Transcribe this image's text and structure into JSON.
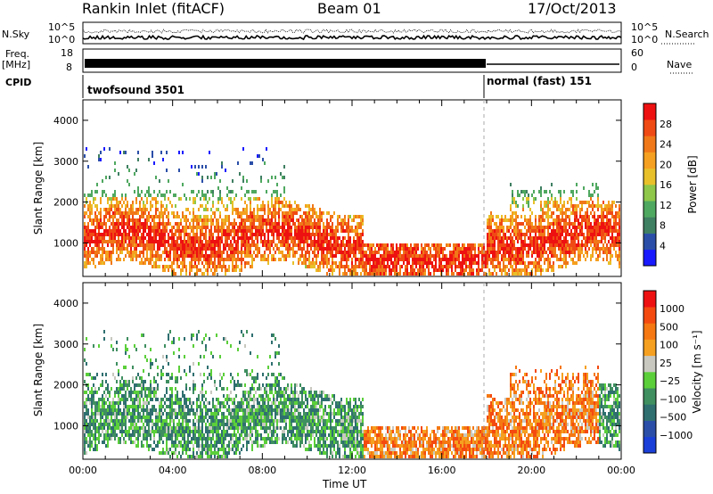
{
  "header": {
    "station": "Rankin Inlet (fitACF)",
    "beam": "Beam 01",
    "date": "17/Oct/2013"
  },
  "strip_labels": {
    "nsky": "N.Sky",
    "nsearch": "N.Search",
    "freq": "Freq.",
    "mhz": "[MHz]",
    "cpid": "CPID",
    "nave": "Nave",
    "noise_top": "10^5",
    "noise_bottom": "10^0",
    "freq_top": "18",
    "freq_bottom": "8",
    "nave_top": "60",
    "nave_bottom": "0"
  },
  "cpid_segments": [
    {
      "label": "twofsound 3501",
      "start_hour": 0,
      "end_hour": 18
    },
    {
      "label": "normal (fast) 151",
      "start_hour": 18,
      "end_hour": 24
    }
  ],
  "colors": {
    "power": [
      "#1a1aff",
      "#2b4fa8",
      "#3f7f62",
      "#4fa860",
      "#8ec74a",
      "#e8c02a",
      "#f5a020",
      "#f07818",
      "#f04a14",
      "#ee1111"
    ],
    "velocity": [
      "#ee1111",
      "#f44a10",
      "#f57812",
      "#f5a020",
      "#c8c8c0",
      "#5bcf3a",
      "#3f8f60",
      "#2f6f70",
      "#2b4fa8",
      "#1a3fd8"
    ]
  },
  "chart_data": [
    {
      "type": "heatmap",
      "panel": "power",
      "ylabel": "Slant Range [km]",
      "xlabel": "",
      "x_range_hours": [
        0,
        24
      ],
      "ylim": [
        180,
        4500
      ],
      "yticks": [
        "1000",
        "2000",
        "3000",
        "4000"
      ],
      "colorbar_label": "Power [dB]",
      "colorbar_ticks": [
        "4",
        "8",
        "12",
        "16",
        "20",
        "24",
        "28"
      ]
    },
    {
      "type": "heatmap",
      "panel": "velocity",
      "ylabel": "Slant Range [km]",
      "xlabel": "Time UT",
      "x_range_hours": [
        0,
        24
      ],
      "xticks": [
        "00:00",
        "04:00",
        "08:00",
        "12:00",
        "16:00",
        "20:00",
        "00:00"
      ],
      "ylim": [
        180,
        4500
      ],
      "yticks": [
        "1000",
        "2000",
        "3000",
        "4000"
      ],
      "colorbar_label": "Velocity [m s⁻¹]",
      "colorbar_ticks": [
        "1000",
        "500",
        "100",
        "25",
        "−25",
        "−100",
        "−500",
        "−1000"
      ]
    }
  ]
}
